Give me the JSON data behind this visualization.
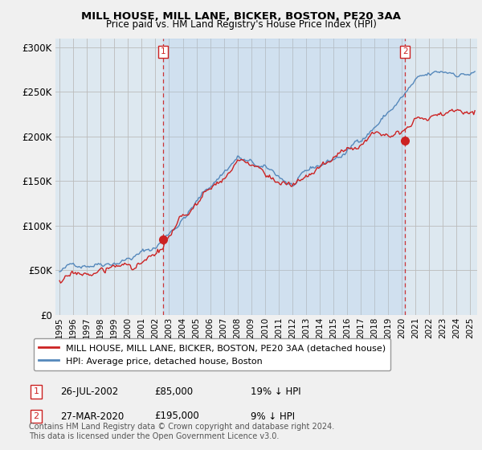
{
  "title": "MILL HOUSE, MILL LANE, BICKER, BOSTON, PE20 3AA",
  "subtitle": "Price paid vs. HM Land Registry's House Price Index (HPI)",
  "hpi_label": "HPI: Average price, detached house, Boston",
  "price_label": "MILL HOUSE, MILL LANE, BICKER, BOSTON, PE20 3AA (detached house)",
  "hpi_color": "#5588bb",
  "price_color": "#cc2222",
  "annotation1": {
    "label": "1",
    "date": "26-JUL-2002",
    "price": "£85,000",
    "pct": "19% ↓ HPI"
  },
  "annotation2": {
    "label": "2",
    "date": "27-MAR-2020",
    "price": "£195,000",
    "pct": "9% ↓ HPI"
  },
  "footer": "Contains HM Land Registry data © Crown copyright and database right 2024.\nThis data is licensed under the Open Government Licence v3.0.",
  "ylim": [
    0,
    310000
  ],
  "yticks": [
    0,
    50000,
    100000,
    150000,
    200000,
    250000,
    300000
  ],
  "xlim_start": 1994.7,
  "xlim_end": 2025.5,
  "background_color": "#f0f0f0",
  "plot_bg_color": "#dde8f0",
  "grid_color": "#bbbbbb",
  "shade_color": "#ccdde8",
  "sale1_x": 2002.568,
  "sale1_y": 85000,
  "sale2_x": 2020.24,
  "sale2_y": 195000
}
